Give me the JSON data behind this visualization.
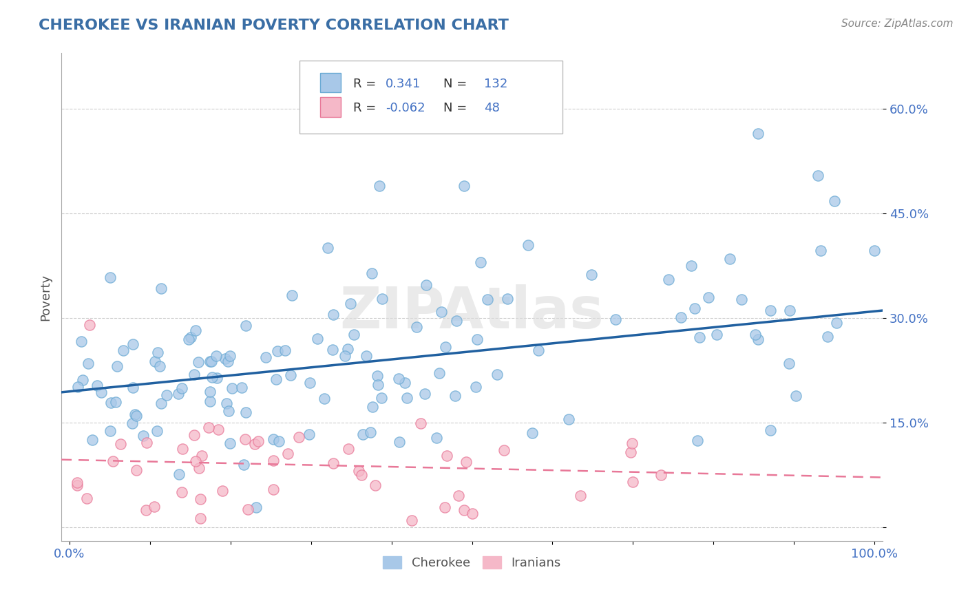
{
  "title": "CHEROKEE VS IRANIAN POVERTY CORRELATION CHART",
  "source": "Source: ZipAtlas.com",
  "ylabel": "Poverty",
  "xlabel": "",
  "xlim": [
    -0.01,
    1.01
  ],
  "ylim": [
    -0.02,
    0.68
  ],
  "xtick_positions": [
    0.0,
    0.1,
    0.2,
    0.3,
    0.4,
    0.5,
    0.6,
    0.7,
    0.8,
    0.9,
    1.0
  ],
  "xticklabels": [
    "0.0%",
    "",
    "",
    "",
    "",
    "",
    "",
    "",
    "",
    "",
    "100.0%"
  ],
  "ytick_positions": [
    0.0,
    0.15,
    0.3,
    0.45,
    0.6
  ],
  "yticklabels": [
    "",
    "15.0%",
    "30.0%",
    "45.0%",
    "60.0%"
  ],
  "cherokee_color": "#A8C8E8",
  "cherokee_edge_color": "#6AAAD4",
  "iranian_color": "#F5B8C8",
  "iranian_edge_color": "#E87898",
  "cherokee_line_color": "#2060A0",
  "iranian_line_color": "#E87898",
  "tick_label_color": "#4472C4",
  "R_cherokee": 0.341,
  "N_cherokee": 132,
  "R_iranian": -0.062,
  "N_iranian": 48,
  "watermark": "ZIPAtlas",
  "background_color": "#FFFFFF",
  "grid_color": "#CCCCCC",
  "title_color": "#3A6EA5",
  "cherokee_slope": 0.115,
  "cherokee_intercept": 0.195,
  "iranian_slope": -0.025,
  "iranian_intercept": 0.097
}
